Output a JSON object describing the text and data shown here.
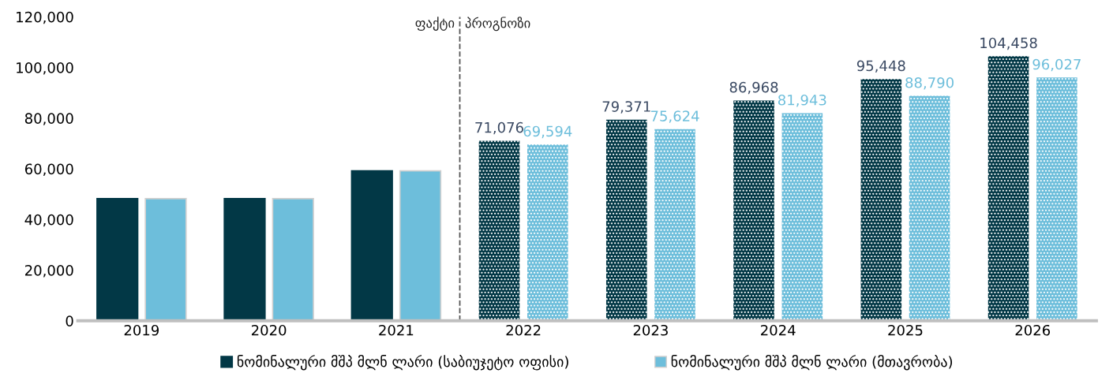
{
  "chart_data": {
    "type": "bar",
    "x": [
      2019,
      2020,
      2021,
      2022,
      2023,
      2024,
      2025,
      2026
    ],
    "xlim": [
      2018.5,
      2026.5
    ],
    "xticks": [
      2019,
      2020,
      2021,
      2022,
      2023,
      2024,
      2025,
      2026
    ],
    "ylim": [
      0,
      120000
    ],
    "yticks": [
      {
        "value": 0,
        "label": "0"
      },
      {
        "value": 20000,
        "label": "20,000"
      },
      {
        "value": 40000,
        "label": "40,000"
      },
      {
        "value": 60000,
        "label": "60,000"
      },
      {
        "value": 80000,
        "label": "80,000"
      },
      {
        "value": 100000,
        "label": "100,000"
      },
      {
        "value": 120000,
        "label": "120,000"
      }
    ],
    "series": [
      {
        "name": "ნომინალური მშპ მლნ ლარი (საბიუჯეტო ოფისი)",
        "color": "#023846",
        "values": [
          48200,
          48200,
          59200,
          71076,
          79371,
          86968,
          95448,
          104458
        ],
        "value_labels": [
          null,
          null,
          null,
          "71,076",
          "79,371",
          "86,968",
          "95,448",
          "104,458"
        ]
      },
      {
        "name": "ნომინალური მშპ მლნ ლარი (მთავრობა)",
        "color": "#6dbedb",
        "values": [
          48200,
          48200,
          59200,
          69594,
          75624,
          81943,
          88790,
          96027
        ],
        "value_labels": [
          null,
          null,
          null,
          "69,594",
          "75,624",
          "81,943",
          "88,790",
          "96,027"
        ]
      }
    ],
    "ref_lines": [
      {
        "axis": "x",
        "value": 2021.5,
        "label": "ფაქტი",
        "color": "#555555",
        "line_style": "dashed"
      }
    ],
    "annotations": [
      {
        "text": "პროგნოზი",
        "x": 2021.5,
        "y": 120000
      }
    ],
    "legend": "bottom",
    "grid": false
  }
}
